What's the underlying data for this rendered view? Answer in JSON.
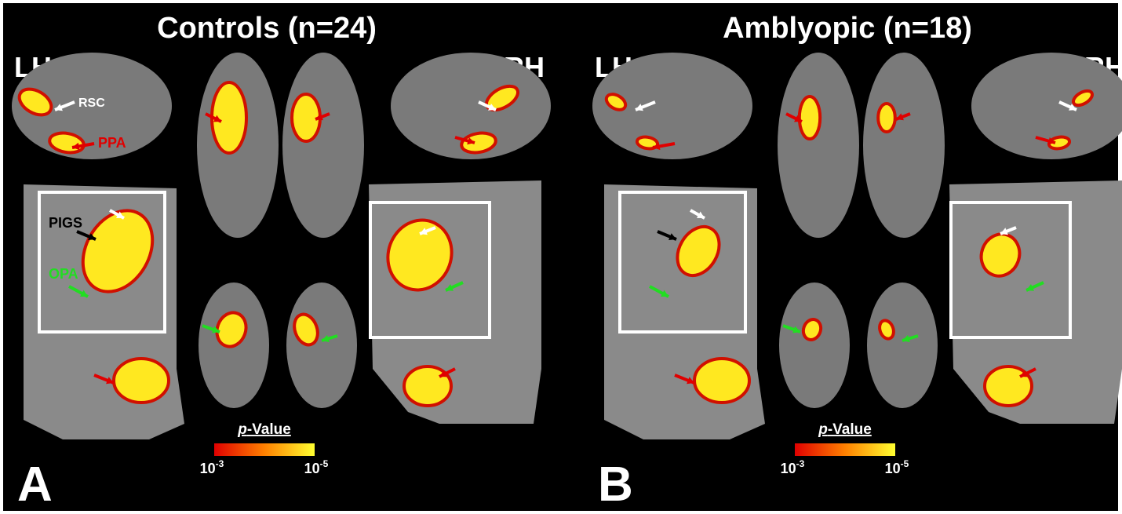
{
  "panels": [
    {
      "title": "Controls (n=24)",
      "label": "A",
      "left_hemisphere": "LH",
      "right_hemisphere": "RH",
      "annotations": [
        "RSC",
        "PPA",
        "PIGS",
        "OPA"
      ],
      "colorbar": {
        "title": {
          "italic": "p",
          "rest": "-Value"
        },
        "min_label": {
          "base": "10",
          "exponent": "-3"
        },
        "max_label": {
          "base": "10",
          "exponent": "-5"
        }
      }
    },
    {
      "title": "Amblyopic (n=18)",
      "label": "B",
      "left_hemisphere": "LH",
      "right_hemisphere": "RH",
      "colorbar": {
        "title": {
          "italic": "p",
          "rest": "-Value"
        },
        "min_label": {
          "base": "10",
          "exponent": "-3"
        },
        "max_label": {
          "base": "10",
          "exponent": "-5"
        }
      }
    }
  ]
}
